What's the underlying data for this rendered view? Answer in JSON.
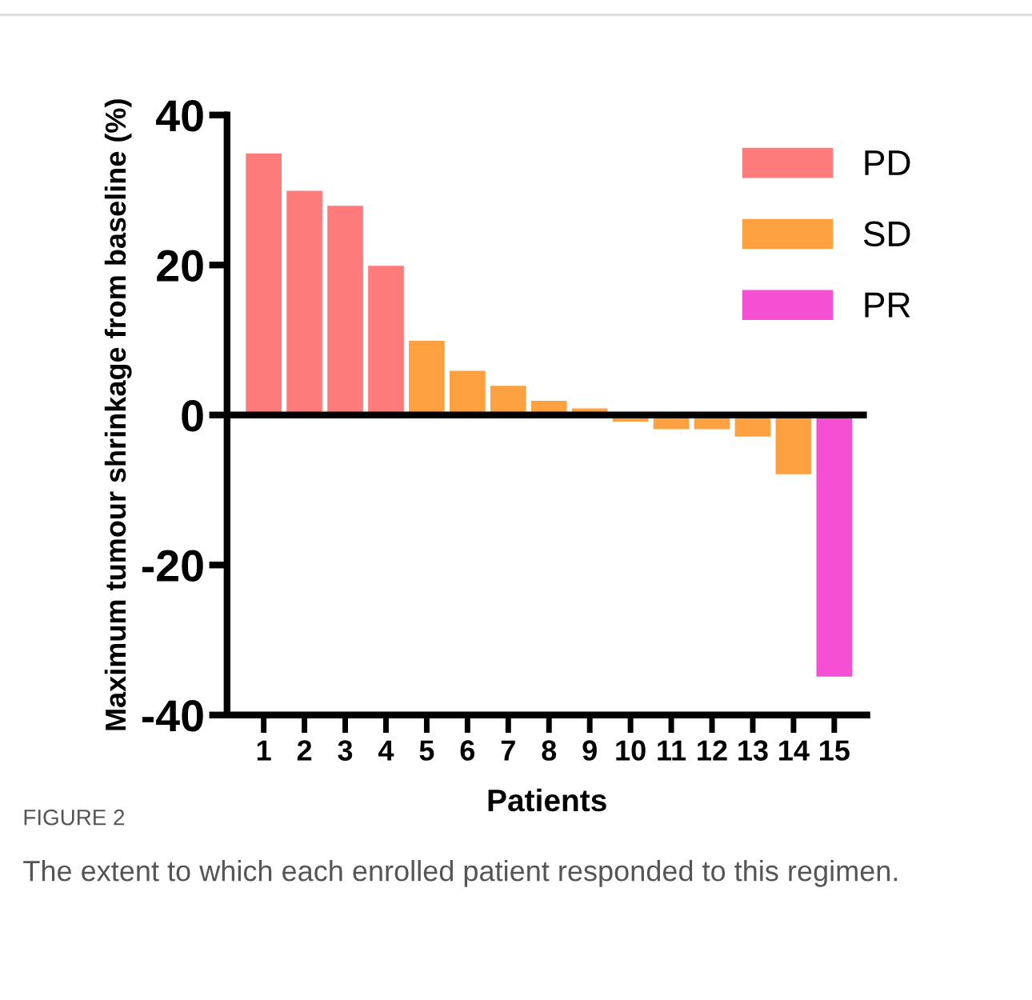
{
  "chart_data": {
    "type": "bar",
    "categories": [
      "1",
      "2",
      "3",
      "4",
      "5",
      "6",
      "7",
      "8",
      "9",
      "10",
      "11",
      "12",
      "13",
      "14",
      "15"
    ],
    "series": [
      {
        "name": "PD",
        "color": "#fd7b7b",
        "values": [
          35,
          30,
          28,
          20,
          null,
          null,
          null,
          null,
          null,
          null,
          null,
          null,
          null,
          null,
          null
        ]
      },
      {
        "name": "SD",
        "color": "#fca040",
        "values": [
          null,
          null,
          null,
          null,
          10,
          6,
          4,
          2,
          1,
          -1,
          -2,
          -2,
          -3,
          -8,
          null
        ]
      },
      {
        "name": "PR",
        "color": "#f54fd4",
        "values": [
          null,
          null,
          null,
          null,
          null,
          null,
          null,
          null,
          null,
          null,
          null,
          null,
          null,
          null,
          -35
        ]
      }
    ],
    "xlabel": "Patients",
    "ylabel": "Maximum tumour shrinkage from baseline (%)",
    "ylim": [
      -40,
      40
    ],
    "yticks": [
      -40,
      -20,
      0,
      20,
      40
    ],
    "ref_lines": [
      {
        "axis": "y",
        "value": 0,
        "color": "#000000"
      }
    ],
    "legend": "top right",
    "grid": false,
    "annotations": [
      "FIGURE 2",
      "The extent to which each enrolled patient responded to this regimen."
    ]
  }
}
